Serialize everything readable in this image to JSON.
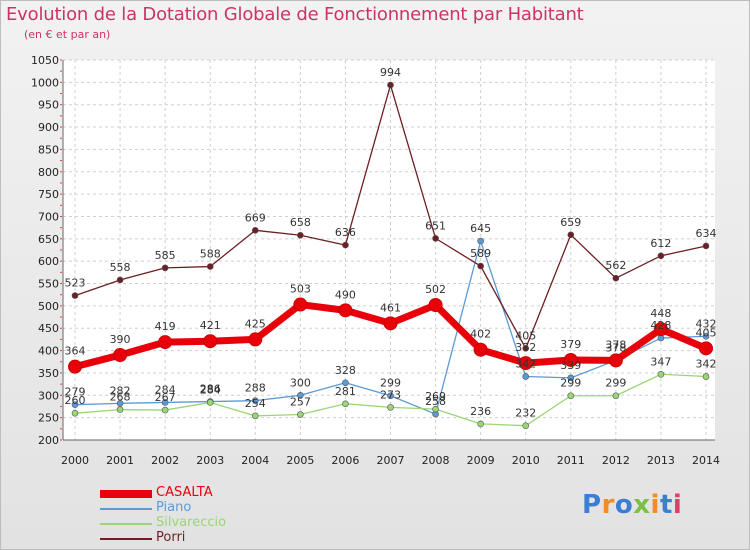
{
  "chart_data": {
    "type": "line",
    "title": "Evolution de la Dotation Globale de Fonctionnement par Habitant",
    "subtitle": "(en € et par an)",
    "x": [
      "2000",
      "2001",
      "2002",
      "2003",
      "2004",
      "2005",
      "2006",
      "2007",
      "2008",
      "2009",
      "2010",
      "2011",
      "2012",
      "2013",
      "2014"
    ],
    "yticks": [
      200,
      250,
      300,
      350,
      400,
      450,
      500,
      550,
      600,
      650,
      700,
      750,
      800,
      850,
      900,
      950,
      1000,
      1050
    ],
    "ylim": [
      200,
      1050
    ],
    "grid": true,
    "legend_placement": "bottom-left",
    "series": [
      {
        "name": "CASALTA",
        "color": "#e8000b",
        "width": 7,
        "values": [
          364,
          390,
          419,
          421,
          425,
          503,
          490,
          461,
          502,
          402,
          372,
          379,
          378,
          448,
          405
        ]
      },
      {
        "name": "Piano",
        "color": "#5b9bd5",
        "width": 1.3,
        "values": [
          279,
          282,
          284,
          286,
          288,
          300,
          328,
          299,
          258,
          645,
          342,
          339,
          378,
          428,
          432
        ]
      },
      {
        "name": "Silvareccio",
        "color": "#99d675",
        "width": 1.3,
        "values": [
          260,
          268,
          267,
          284,
          254,
          257,
          281,
          273,
          269,
          236,
          232,
          299,
          299,
          347,
          342
        ]
      },
      {
        "name": "Porri",
        "color": "#6d1f23",
        "width": 1.3,
        "values": [
          523,
          558,
          585,
          588,
          669,
          658,
          636,
          994,
          651,
          589,
          405,
          659,
          562,
          612,
          634
        ]
      }
    ]
  },
  "logo": {
    "text": "Proxiti"
  }
}
